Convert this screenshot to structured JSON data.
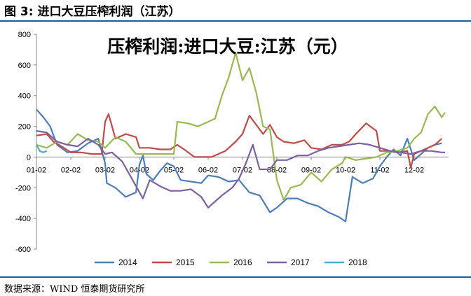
{
  "figure_title": "图 3: 进口大豆压榨利润（江苏）",
  "source": "数据来源：WIND 恒泰期货研究所",
  "chart_data": {
    "type": "line",
    "title": "压榨利润:进口大豆:江苏（元）",
    "ylim": [
      -600,
      800
    ],
    "yticks": [
      800,
      600,
      400,
      200,
      0,
      -200,
      -400,
      -600
    ],
    "x_tick_labels": [
      "01-02",
      "02-02",
      "03-02",
      "04-02",
      "05-02",
      "06-02",
      "07-02",
      "08-02",
      "09-02",
      "10-02",
      "11-02",
      "12-02"
    ],
    "xlim_months": [
      1,
      13
    ],
    "grid": false,
    "legend_position": "bottom",
    "series": [
      {
        "name": "2014",
        "color": "#4a7ebb",
        "points": [
          [
            1.0,
            310
          ],
          [
            1.2,
            260
          ],
          [
            1.4,
            200
          ],
          [
            1.6,
            80
          ],
          [
            1.9,
            30
          ],
          [
            2.2,
            40
          ],
          [
            2.5,
            90
          ],
          [
            2.8,
            120
          ],
          [
            3.0,
            -40
          ],
          [
            3.05,
            -170
          ],
          [
            3.3,
            -200
          ],
          [
            3.6,
            -260
          ],
          [
            3.9,
            -230
          ],
          [
            4.0,
            -50
          ],
          [
            4.1,
            10
          ],
          [
            4.2,
            -110
          ],
          [
            4.4,
            -150
          ],
          [
            4.6,
            -90
          ],
          [
            4.8,
            -40
          ],
          [
            5.0,
            -60
          ],
          [
            5.2,
            -150
          ],
          [
            5.5,
            -160
          ],
          [
            5.8,
            -170
          ],
          [
            6.0,
            -120
          ],
          [
            6.3,
            -130
          ],
          [
            6.6,
            -160
          ],
          [
            6.9,
            -150
          ],
          [
            7.2,
            -230
          ],
          [
            7.5,
            -250
          ],
          [
            7.8,
            -360
          ],
          [
            8.0,
            -330
          ],
          [
            8.3,
            -270
          ],
          [
            8.6,
            -270
          ],
          [
            8.9,
            -300
          ],
          [
            9.2,
            -320
          ],
          [
            9.5,
            -360
          ],
          [
            9.8,
            -390
          ],
          [
            10.0,
            -420
          ],
          [
            10.2,
            -130
          ],
          [
            10.5,
            -170
          ],
          [
            10.8,
            -140
          ],
          [
            11.0,
            -60
          ],
          [
            11.2,
            0
          ],
          [
            11.4,
            50
          ],
          [
            11.6,
            10
          ],
          [
            11.8,
            120
          ],
          [
            12.0,
            -20
          ],
          [
            12.2,
            20
          ],
          [
            12.4,
            60
          ],
          [
            12.6,
            80
          ],
          [
            12.8,
            90
          ]
        ]
      },
      {
        "name": "2015",
        "color": "#be4b48",
        "points": [
          [
            1.0,
            140
          ],
          [
            1.3,
            150
          ],
          [
            1.5,
            100
          ],
          [
            1.8,
            60
          ],
          [
            2.0,
            30
          ],
          [
            2.3,
            30
          ],
          [
            2.6,
            20
          ],
          [
            2.9,
            20
          ],
          [
            3.0,
            230
          ],
          [
            3.1,
            280
          ],
          [
            3.3,
            120
          ],
          [
            3.6,
            150
          ],
          [
            3.9,
            130
          ],
          [
            4.0,
            60
          ],
          [
            4.3,
            60
          ],
          [
            4.6,
            50
          ],
          [
            4.9,
            50
          ],
          [
            5.1,
            80
          ],
          [
            5.3,
            50
          ],
          [
            5.6,
            0
          ],
          [
            5.9,
            0
          ],
          [
            6.1,
            0
          ],
          [
            6.3,
            20
          ],
          [
            6.5,
            40
          ],
          [
            6.8,
            100
          ],
          [
            7.0,
            150
          ],
          [
            7.2,
            270
          ],
          [
            7.4,
            210
          ],
          [
            7.6,
            150
          ],
          [
            7.8,
            210
          ],
          [
            8.0,
            130
          ],
          [
            8.2,
            100
          ],
          [
            8.5,
            90
          ],
          [
            8.8,
            110
          ],
          [
            9.0,
            60
          ],
          [
            9.3,
            50
          ],
          [
            9.6,
            80
          ],
          [
            9.9,
            80
          ],
          [
            10.1,
            100
          ],
          [
            10.3,
            150
          ],
          [
            10.6,
            220
          ],
          [
            10.9,
            170
          ],
          [
            11.0,
            40
          ],
          [
            11.2,
            40
          ],
          [
            11.5,
            30
          ],
          [
            11.8,
            40
          ],
          [
            11.9,
            -70
          ],
          [
            12.0,
            20
          ],
          [
            12.3,
            50
          ],
          [
            12.6,
            80
          ],
          [
            12.8,
            120
          ]
        ]
      },
      {
        "name": "2016",
        "color": "#98b954",
        "points": [
          [
            1.0,
            80
          ],
          [
            1.3,
            60
          ],
          [
            1.6,
            100
          ],
          [
            1.9,
            80
          ],
          [
            2.2,
            150
          ],
          [
            2.5,
            110
          ],
          [
            2.8,
            100
          ],
          [
            3.0,
            60
          ],
          [
            3.3,
            130
          ],
          [
            3.6,
            100
          ],
          [
            3.9,
            20
          ],
          [
            4.2,
            20
          ],
          [
            4.5,
            20
          ],
          [
            4.8,
            20
          ],
          [
            5.0,
            20
          ],
          [
            5.1,
            230
          ],
          [
            5.4,
            220
          ],
          [
            5.7,
            200
          ],
          [
            6.0,
            230
          ],
          [
            6.2,
            250
          ],
          [
            6.4,
            400
          ],
          [
            6.6,
            520
          ],
          [
            6.8,
            680
          ],
          [
            7.0,
            500
          ],
          [
            7.2,
            580
          ],
          [
            7.4,
            420
          ],
          [
            7.6,
            200
          ],
          [
            7.8,
            180
          ],
          [
            8.0,
            -150
          ],
          [
            8.2,
            -280
          ],
          [
            8.4,
            -200
          ],
          [
            8.7,
            -180
          ],
          [
            9.0,
            -100
          ],
          [
            9.3,
            -160
          ],
          [
            9.6,
            -80
          ],
          [
            9.9,
            -40
          ],
          [
            10.0,
            0
          ],
          [
            10.3,
            -20
          ],
          [
            10.6,
            -10
          ],
          [
            10.9,
            0
          ],
          [
            11.2,
            30
          ],
          [
            11.5,
            40
          ],
          [
            11.8,
            60
          ],
          [
            12.0,
            120
          ],
          [
            12.2,
            160
          ],
          [
            12.4,
            280
          ],
          [
            12.6,
            330
          ],
          [
            12.8,
            260
          ],
          [
            12.9,
            290
          ]
        ]
      },
      {
        "name": "2017",
        "color": "#7d60a0",
        "points": [
          [
            1.0,
            170
          ],
          [
            1.3,
            160
          ],
          [
            1.6,
            100
          ],
          [
            1.9,
            80
          ],
          [
            2.2,
            70
          ],
          [
            2.5,
            120
          ],
          [
            2.8,
            80
          ],
          [
            3.0,
            20
          ],
          [
            3.2,
            30
          ],
          [
            3.5,
            -30
          ],
          [
            3.8,
            -150
          ],
          [
            4.1,
            -270
          ],
          [
            4.3,
            -150
          ],
          [
            4.6,
            -190
          ],
          [
            4.9,
            -220
          ],
          [
            5.2,
            -220
          ],
          [
            5.5,
            -210
          ],
          [
            5.8,
            -260
          ],
          [
            6.0,
            -330
          ],
          [
            6.2,
            -290
          ],
          [
            6.4,
            -250
          ],
          [
            6.7,
            -200
          ],
          [
            6.9,
            -140
          ],
          [
            7.1,
            -40
          ],
          [
            7.3,
            80
          ],
          [
            7.5,
            -80
          ],
          [
            7.8,
            -80
          ],
          [
            8.0,
            -20
          ],
          [
            8.3,
            -20
          ],
          [
            8.6,
            10
          ],
          [
            8.9,
            10
          ],
          [
            9.2,
            40
          ],
          [
            9.5,
            60
          ],
          [
            9.8,
            70
          ],
          [
            10.1,
            80
          ],
          [
            10.4,
            90
          ],
          [
            10.7,
            80
          ],
          [
            11.0,
            60
          ],
          [
            11.3,
            40
          ],
          [
            11.6,
            30
          ],
          [
            11.9,
            20
          ],
          [
            12.2,
            40
          ],
          [
            12.5,
            40
          ],
          [
            12.8,
            30
          ],
          [
            12.9,
            30
          ]
        ]
      },
      {
        "name": "2018",
        "color": "#4bacc6",
        "points": [
          [
            1.0,
            80
          ],
          [
            1.1,
            40
          ],
          [
            1.2,
            30
          ],
          [
            1.3,
            40
          ]
        ]
      }
    ]
  }
}
